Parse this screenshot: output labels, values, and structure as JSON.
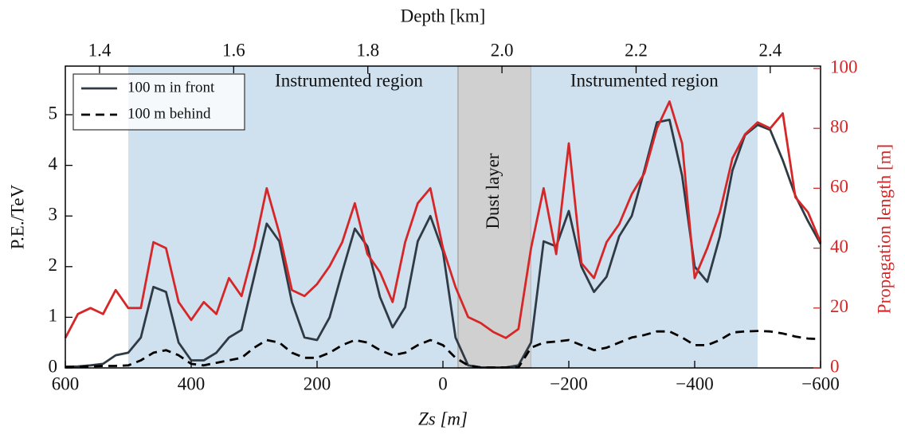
{
  "chart_data": {
    "type": "line",
    "xlabel": "Zs [m]",
    "ylabel": "P.E./TeV",
    "y2label": "Propagation length [m]",
    "toplabel": "Depth [km]",
    "xlim": [
      600,
      -600
    ],
    "xticks": [
      {
        "value": 600,
        "label": "600"
      },
      {
        "value": 400,
        "label": "400"
      },
      {
        "value": 200,
        "label": "200"
      },
      {
        "value": 0,
        "label": "0"
      },
      {
        "value": -200,
        "label": "−200"
      },
      {
        "value": -400,
        "label": "−400"
      },
      {
        "value": -600,
        "label": "−600"
      }
    ],
    "toplim": [
      1.349,
      2.475
    ],
    "topticks": [
      1.4,
      1.6,
      1.8,
      {
        "value": 2,
        "label": "2.0"
      },
      2.2,
      2.4
    ],
    "ylim": [
      0,
      5.96
    ],
    "yticks": [
      0,
      1,
      2,
      3,
      4,
      5
    ],
    "y2lim": [
      0,
      100.8
    ],
    "y2ticks": [
      0,
      20,
      40,
      60,
      80,
      100
    ],
    "y2color": "#d62728",
    "legend": "upper left",
    "regions": [
      {
        "label": "Instrumented region",
        "from": 500,
        "to": -24,
        "color": "#cfe0ee"
      },
      {
        "label": "Dust layer",
        "from": -24,
        "to": -140,
        "color": "#d0d0d0"
      },
      {
        "label": "Instrumented region",
        "from": -140,
        "to": -500,
        "color": "#cfe0ee"
      }
    ],
    "x": [
      600,
      580,
      560,
      540,
      520,
      500,
      480,
      460,
      440,
      420,
      400,
      380,
      360,
      340,
      320,
      300,
      280,
      260,
      240,
      220,
      200,
      180,
      160,
      140,
      120,
      100,
      80,
      60,
      40,
      20,
      0,
      -20,
      -40,
      -60,
      -80,
      -100,
      -120,
      -140,
      -160,
      -180,
      -200,
      -220,
      -240,
      -260,
      -280,
      -300,
      -320,
      -340,
      -360,
      -380,
      -400,
      -420,
      -440,
      -460,
      -480,
      -500,
      -520,
      -540,
      -560,
      -580,
      -600
    ],
    "series": [
      {
        "name": "100 m in front",
        "color": "#2f3a44",
        "dash": "solid",
        "values": [
          0.02,
          0.03,
          0.05,
          0.08,
          0.25,
          0.3,
          0.6,
          1.6,
          1.5,
          0.5,
          0.15,
          0.15,
          0.3,
          0.6,
          0.75,
          1.8,
          2.85,
          2.5,
          1.3,
          0.6,
          0.55,
          1.0,
          1.9,
          2.75,
          2.4,
          1.4,
          0.8,
          1.2,
          2.5,
          3.0,
          2.3,
          0.6,
          0.05,
          0.01,
          0.01,
          0.01,
          0.05,
          0.5,
          2.5,
          2.4,
          3.1,
          2.0,
          1.5,
          1.8,
          2.6,
          3.0,
          3.9,
          4.85,
          4.9,
          3.8,
          2.0,
          1.7,
          2.6,
          3.9,
          4.6,
          4.8,
          4.7,
          4.1,
          3.4,
          2.9,
          2.45
        ]
      },
      {
        "name": "100 m behind",
        "color": "#000000",
        "dash": "dashed",
        "values": [
          0.02,
          0.02,
          0.03,
          0.04,
          0.04,
          0.05,
          0.15,
          0.3,
          0.35,
          0.25,
          0.08,
          0.05,
          0.1,
          0.15,
          0.2,
          0.4,
          0.55,
          0.5,
          0.3,
          0.2,
          0.2,
          0.3,
          0.45,
          0.55,
          0.5,
          0.35,
          0.25,
          0.3,
          0.45,
          0.55,
          0.45,
          0.2,
          0.05,
          0.01,
          0.01,
          0.01,
          0.01,
          0.4,
          0.5,
          0.52,
          0.55,
          0.45,
          0.35,
          0.4,
          0.5,
          0.6,
          0.65,
          0.72,
          0.72,
          0.6,
          0.45,
          0.45,
          0.55,
          0.7,
          0.72,
          0.73,
          0.72,
          0.68,
          0.62,
          0.58,
          0.57
        ]
      },
      {
        "color": "#d62728",
        "dash": "solid",
        "axis": "y2",
        "values": [
          10,
          18,
          20,
          18,
          26,
          20,
          20,
          42,
          40,
          22,
          16,
          22,
          18,
          30,
          24,
          40,
          60,
          45,
          26,
          24,
          28,
          34,
          42,
          55,
          38,
          32,
          22,
          42,
          55,
          60,
          40,
          27,
          17,
          15,
          12,
          10,
          13,
          40,
          60,
          38,
          75,
          35,
          30,
          42,
          48,
          58,
          65,
          80,
          89,
          75,
          30,
          40,
          52,
          70,
          78,
          82,
          80,
          85,
          57,
          52,
          42
        ]
      }
    ]
  }
}
